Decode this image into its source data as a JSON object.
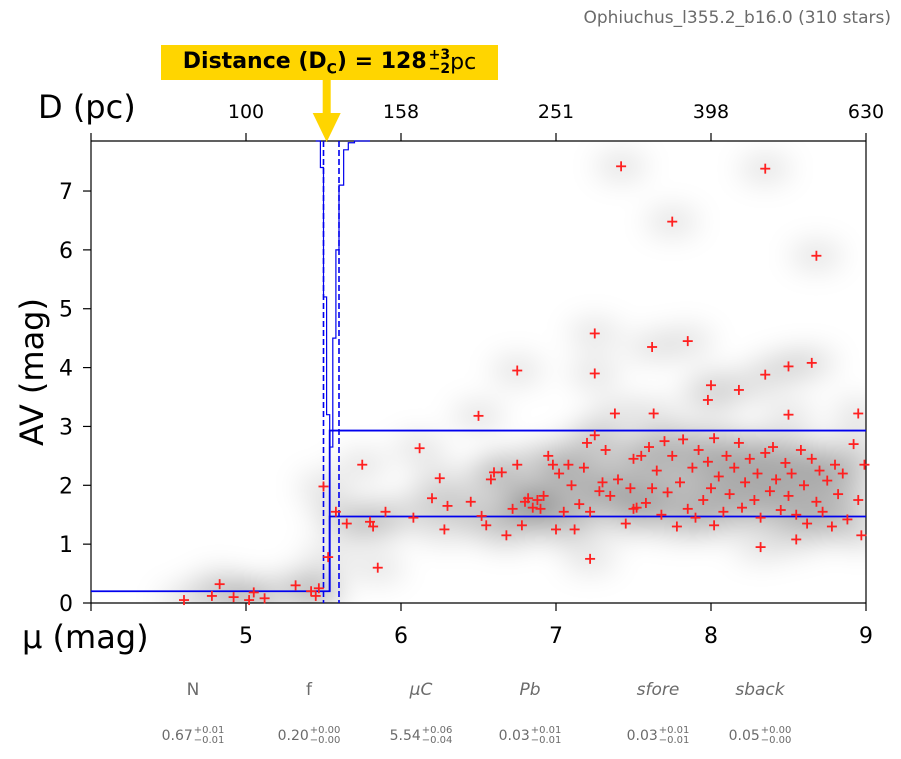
{
  "region_title": "Ophiuchus_l355.2_b16.0 (310 stars)",
  "callout": {
    "prefix": "Distance (D",
    "subscript": "C",
    "mid": ") = 128",
    "sup": "+3",
    "sub": "−2",
    "unit": " pc"
  },
  "parameters": [
    {
      "name": "N",
      "italic": false,
      "value": "0.67",
      "plus": "+0.01",
      "minus": "−0.01"
    },
    {
      "name": "f",
      "italic": false,
      "value": "0.20",
      "plus": "+0.00",
      "minus": "−0.00"
    },
    {
      "name": "μC",
      "italic": true,
      "value": "5.54",
      "plus": "+0.06",
      "minus": "−0.04"
    },
    {
      "name": "Pb",
      "italic": true,
      "value": "0.03",
      "plus": "+0.01",
      "minus": "−0.01"
    },
    {
      "name": "sfore",
      "italic": true,
      "value": "0.03",
      "plus": "+0.01",
      "minus": "−0.01"
    },
    {
      "name": "sback",
      "italic": true,
      "value": "0.05",
      "plus": "+0.00",
      "minus": "−0.00"
    }
  ],
  "chart_data": {
    "type": "scatter",
    "xlabel": "μ (mag)",
    "ylabel": "AV (mag)",
    "x2label": "D (pc)",
    "xlim": [
      4,
      9
    ],
    "ylim": [
      0,
      7.85
    ],
    "xticks": [
      5,
      6,
      7,
      8,
      9
    ],
    "yticks": [
      0,
      1,
      2,
      3,
      4,
      5,
      6,
      7
    ],
    "top_ticks": [
      {
        "mu": 5,
        "label": "100"
      },
      {
        "mu": 6,
        "label": "158"
      },
      {
        "mu": 7,
        "label": "251"
      },
      {
        "mu": 8,
        "label": "398"
      },
      {
        "mu": 9,
        "label": "630"
      }
    ],
    "colors": {
      "stars": "#ff2020",
      "model": "#0000ee",
      "callout": "#ffd500",
      "arrow": "#ffd500"
    },
    "model": {
      "cloud_mu": 5.54,
      "mu_lower": 5.5,
      "mu_upper": 5.6,
      "foreground_av": 0.2,
      "background_av": 1.47,
      "background_av_upper": 2.93
    },
    "stars": [
      [
        4.6,
        0.05
      ],
      [
        4.78,
        0.12
      ],
      [
        4.83,
        0.32
      ],
      [
        4.92,
        0.1
      ],
      [
        5.02,
        0.05
      ],
      [
        5.05,
        0.18
      ],
      [
        5.12,
        0.08
      ],
      [
        5.32,
        0.3
      ],
      [
        5.42,
        0.2
      ],
      [
        5.45,
        0.12
      ],
      [
        5.47,
        0.25
      ],
      [
        5.5,
        1.98
      ],
      [
        5.53,
        0.78
      ],
      [
        5.58,
        1.55
      ],
      [
        5.65,
        1.35
      ],
      [
        5.75,
        2.35
      ],
      [
        5.8,
        1.38
      ],
      [
        5.82,
        1.3
      ],
      [
        5.85,
        0.6
      ],
      [
        5.9,
        1.55
      ],
      [
        6.08,
        1.45
      ],
      [
        6.12,
        2.63
      ],
      [
        6.2,
        1.78
      ],
      [
        6.25,
        2.12
      ],
      [
        6.28,
        1.25
      ],
      [
        6.3,
        1.65
      ],
      [
        6.45,
        1.72
      ],
      [
        6.5,
        3.18
      ],
      [
        6.52,
        1.48
      ],
      [
        6.55,
        1.32
      ],
      [
        6.58,
        2.1
      ],
      [
        6.6,
        2.22
      ],
      [
        6.65,
        2.22
      ],
      [
        6.68,
        1.15
      ],
      [
        6.72,
        1.6
      ],
      [
        6.75,
        2.35
      ],
      [
        6.78,
        1.32
      ],
      [
        6.8,
        1.72
      ],
      [
        6.82,
        1.78
      ],
      [
        6.85,
        1.62
      ],
      [
        6.88,
        1.75
      ],
      [
        6.9,
        1.6
      ],
      [
        6.92,
        1.82
      ],
      [
        6.95,
        2.5
      ],
      [
        6.98,
        2.35
      ],
      [
        7.0,
        1.25
      ],
      [
        7.02,
        2.2
      ],
      [
        7.05,
        1.55
      ],
      [
        7.08,
        2.35
      ],
      [
        7.1,
        2.0
      ],
      [
        7.12,
        1.25
      ],
      [
        7.15,
        1.68
      ],
      [
        7.18,
        2.3
      ],
      [
        7.2,
        2.72
      ],
      [
        7.22,
        1.55
      ],
      [
        7.25,
        2.85
      ],
      [
        7.28,
        1.9
      ],
      [
        7.3,
        2.05
      ],
      [
        7.32,
        2.6
      ],
      [
        7.35,
        1.82
      ],
      [
        7.38,
        3.22
      ],
      [
        7.4,
        2.1
      ],
      [
        7.45,
        1.35
      ],
      [
        7.48,
        1.95
      ],
      [
        7.5,
        2.45
      ],
      [
        7.52,
        1.62
      ],
      [
        7.55,
        2.5
      ],
      [
        7.58,
        1.7
      ],
      [
        7.6,
        2.65
      ],
      [
        7.62,
        1.95
      ],
      [
        7.65,
        2.25
      ],
      [
        7.68,
        1.5
      ],
      [
        7.7,
        2.75
      ],
      [
        7.72,
        1.88
      ],
      [
        7.75,
        2.5
      ],
      [
        7.78,
        1.3
      ],
      [
        7.8,
        2.05
      ],
      [
        7.82,
        2.78
      ],
      [
        7.85,
        1.6
      ],
      [
        7.88,
        2.3
      ],
      [
        7.9,
        1.45
      ],
      [
        7.92,
        2.6
      ],
      [
        7.95,
        1.75
      ],
      [
        7.98,
        2.4
      ],
      [
        8.0,
        1.95
      ],
      [
        8.02,
        2.8
      ],
      [
        8.05,
        2.15
      ],
      [
        8.08,
        1.55
      ],
      [
        8.1,
        2.5
      ],
      [
        8.12,
        1.85
      ],
      [
        8.15,
        2.3
      ],
      [
        8.18,
        2.72
      ],
      [
        8.2,
        1.62
      ],
      [
        8.22,
        2.05
      ],
      [
        8.25,
        2.45
      ],
      [
        8.28,
        1.75
      ],
      [
        8.3,
        2.2
      ],
      [
        8.32,
        1.45
      ],
      [
        8.35,
        2.55
      ],
      [
        8.38,
        1.9
      ],
      [
        8.4,
        2.65
      ],
      [
        8.42,
        2.1
      ],
      [
        8.45,
        1.58
      ],
      [
        8.48,
        2.38
      ],
      [
        8.5,
        1.82
      ],
      [
        8.52,
        2.2
      ],
      [
        8.55,
        1.5
      ],
      [
        8.58,
        2.6
      ],
      [
        8.6,
        2.0
      ],
      [
        8.62,
        1.35
      ],
      [
        8.65,
        2.45
      ],
      [
        8.68,
        1.72
      ],
      [
        8.7,
        2.25
      ],
      [
        8.72,
        1.55
      ],
      [
        8.75,
        2.08
      ],
      [
        8.78,
        1.3
      ],
      [
        8.8,
        2.35
      ],
      [
        8.82,
        1.85
      ],
      [
        8.85,
        2.2
      ],
      [
        8.88,
        1.42
      ],
      [
        8.92,
        2.7
      ],
      [
        8.95,
        1.75
      ],
      [
        8.97,
        1.15
      ],
      [
        8.99,
        2.35
      ],
      [
        7.22,
        0.75
      ],
      [
        7.25,
        3.9
      ],
      [
        7.25,
        4.58
      ],
      [
        7.42,
        7.42
      ],
      [
        7.62,
        4.35
      ],
      [
        7.63,
        3.22
      ],
      [
        7.75,
        6.48
      ],
      [
        7.85,
        4.45
      ],
      [
        7.98,
        3.45
      ],
      [
        8.0,
        3.7
      ],
      [
        8.18,
        3.62
      ],
      [
        8.35,
        3.88
      ],
      [
        8.35,
        7.38
      ],
      [
        8.5,
        3.2
      ],
      [
        8.5,
        4.02
      ],
      [
        8.65,
        4.08
      ],
      [
        8.68,
        5.9
      ],
      [
        8.95,
        3.22
      ],
      [
        6.75,
        3.95
      ],
      [
        8.32,
        0.95
      ],
      [
        8.55,
        1.08
      ],
      [
        8.02,
        1.32
      ],
      [
        7.5,
        1.6
      ]
    ]
  }
}
